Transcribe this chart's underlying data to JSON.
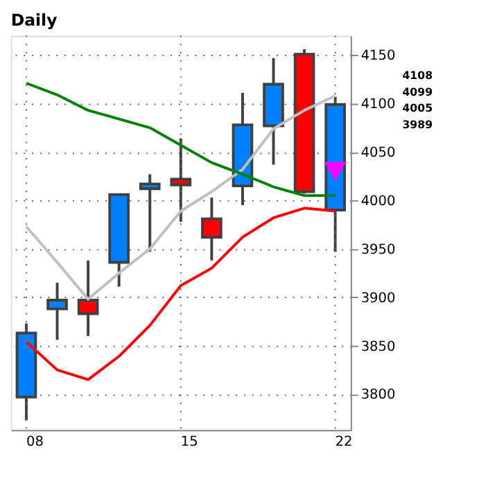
{
  "chart_data": {
    "type": "candlestick",
    "title": "Daily",
    "categories": [
      "08",
      null,
      null,
      null,
      null,
      "15",
      null,
      null,
      null,
      null,
      "22"
    ],
    "ohlc": [
      [
        3797,
        3873,
        3773,
        3863
      ],
      [
        3888,
        3915,
        3856,
        3897
      ],
      [
        3897,
        3938,
        3860,
        3883
      ],
      [
        3936,
        4007,
        3911,
        4006
      ],
      [
        4012,
        4027,
        3947,
        4017
      ],
      [
        4022,
        4064,
        3978,
        4016
      ],
      [
        3981,
        4003,
        3938,
        3962
      ],
      [
        4015,
        4111,
        3995,
        4078
      ],
      [
        4077,
        4147,
        4037,
        4120
      ],
      [
        4151,
        4156,
        4007,
        4009
      ],
      [
        3990,
        4107,
        3947,
        4099
      ]
    ],
    "colors": [
      "#0080ff",
      "#0080ff",
      "#ff0000",
      "#0080ff",
      "#0080ff",
      "#ff0000",
      "#ff0000",
      "#0080ff",
      "#0080ff",
      "#ff0000",
      "#0080ff"
    ],
    "series": [
      {
        "type": "line",
        "color": "#c0c0c0",
        "values": [
          3973,
          3936,
          3898,
          3925,
          3950,
          3989,
          4009,
          4032,
          4074,
          4093,
          4108
        ]
      },
      {
        "type": "line",
        "color": "#008000",
        "values": [
          4121,
          4109,
          4093,
          4084,
          4075,
          4057,
          4039,
          4027,
          4014,
          4005,
          4005
        ]
      },
      {
        "type": "line",
        "color": "#ff0000",
        "values": [
          3854,
          3825,
          3815,
          3839,
          3871,
          3912,
          3930,
          3962,
          3982,
          3992,
          3989
        ]
      },
      {
        "type": "scatter",
        "color": "#ff00ff",
        "marker": "triangle",
        "values": [
          null,
          null,
          null,
          null,
          null,
          null,
          null,
          null,
          null,
          null,
          4030
        ]
      }
    ],
    "annotations": [
      "4108",
      "4099",
      "4005",
      "3989"
    ],
    "ylim": [
      3763,
      4170
    ],
    "yticks": [
      3800,
      3850,
      3900,
      3950,
      4000,
      4050,
      4100,
      4150
    ],
    "grid": true
  }
}
